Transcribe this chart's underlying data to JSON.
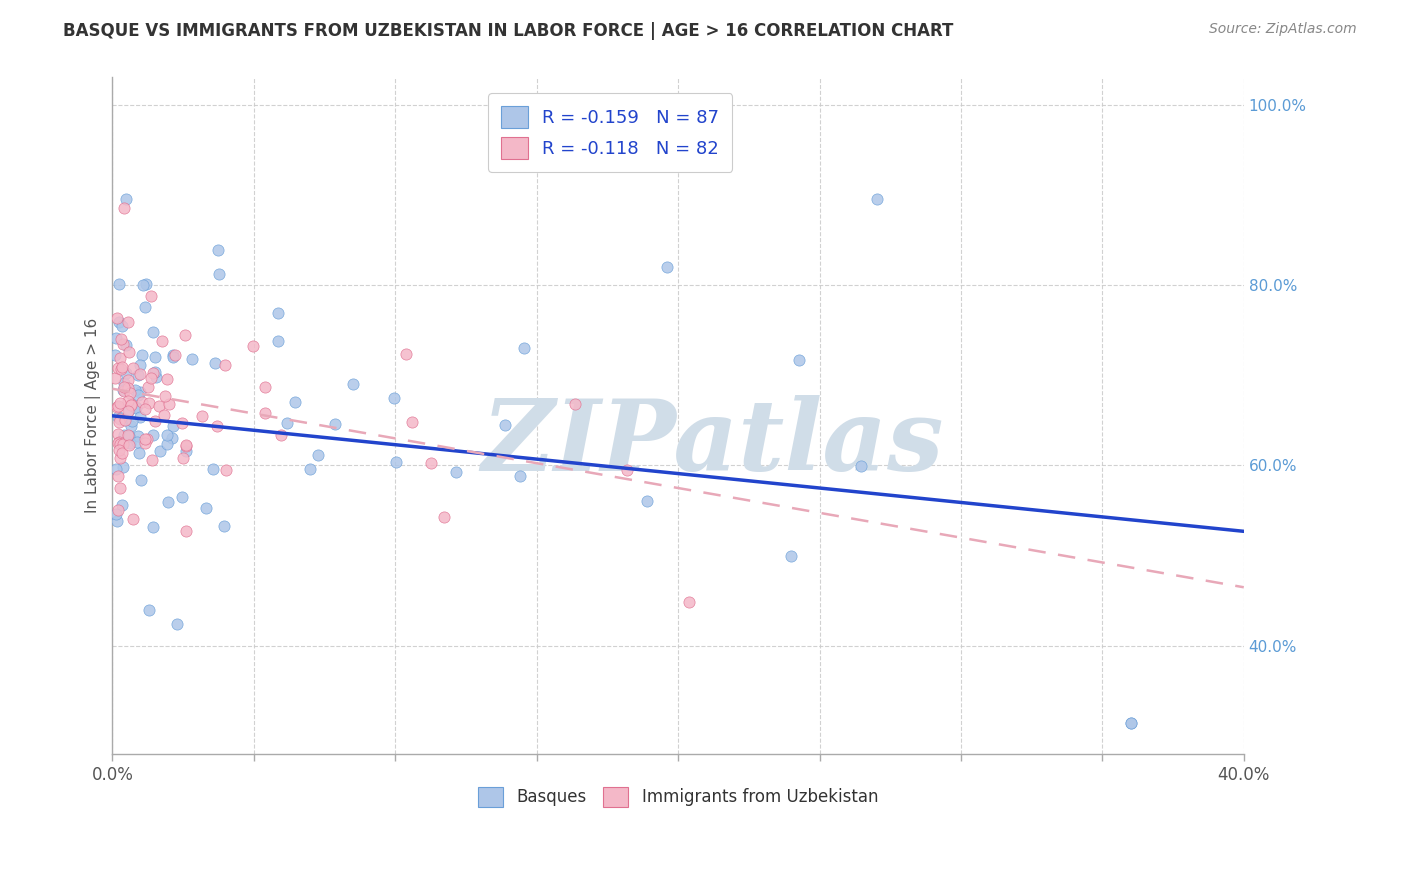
{
  "title": "BASQUE VS IMMIGRANTS FROM UZBEKISTAN IN LABOR FORCE | AGE > 16 CORRELATION CHART",
  "source": "Source: ZipAtlas.com",
  "ylabel": "In Labor Force | Age > 16",
  "legend_label1": "Basques",
  "legend_label2": "Immigrants from Uzbekistan",
  "R1": -0.159,
  "N1": 87,
  "R2": -0.118,
  "N2": 82,
  "x_min": 0.0,
  "x_max": 0.4,
  "y_min": 0.28,
  "y_max": 1.03,
  "y_ticks_right": [
    0.4,
    0.6,
    0.8,
    1.0
  ],
  "color_blue_fill": "#aec6e8",
  "color_blue_edge": "#6a9fd8",
  "color_pink_fill": "#f4b8c8",
  "color_pink_edge": "#e07090",
  "color_line_blue": "#2244cc",
  "color_line_pink": "#e8a8b8",
  "color_grid": "#cccccc",
  "color_right_axis": "#5b9bd5",
  "watermark_color": "#d0dde8",
  "watermark_text": "ZIPatlas",
  "background": "#ffffff",
  "title_color": "#333333",
  "source_color": "#888888",
  "ylabel_color": "#555555",
  "tick_color": "#555555",
  "blue_line_intercept": 0.655,
  "blue_line_slope": -0.32,
  "pink_line_intercept": 0.685,
  "pink_line_slope": -0.55
}
